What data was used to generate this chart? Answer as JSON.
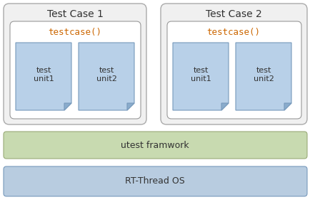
{
  "bg_color": "#ffffff",
  "outer_bg": "#f0f0f0",
  "outer_edge": "#aaaaaa",
  "testcase_box_color": "#ffffff",
  "testcase_box_edge": "#999999",
  "unit_fill": "#b8d0e8",
  "unit_edge": "#7799bb",
  "unit_fold_fill": "#8aaccc",
  "utest_fill": "#c8dab0",
  "utest_edge": "#99aa77",
  "rtthread_fill": "#b8cce0",
  "rtthread_edge": "#7799bb",
  "title1": "Test Case 1",
  "title2": "Test Case 2",
  "testcase_label": "testcase()",
  "testcase_label_color": "#cc6600",
  "unit1_label": "test\nunit1",
  "unit2_label": "test\nunit2",
  "utest_label": "utest framwork",
  "rtthread_label": "RT-Thread OS",
  "text_color": "#333333",
  "label_fontsize": 8,
  "title_fontsize": 10
}
